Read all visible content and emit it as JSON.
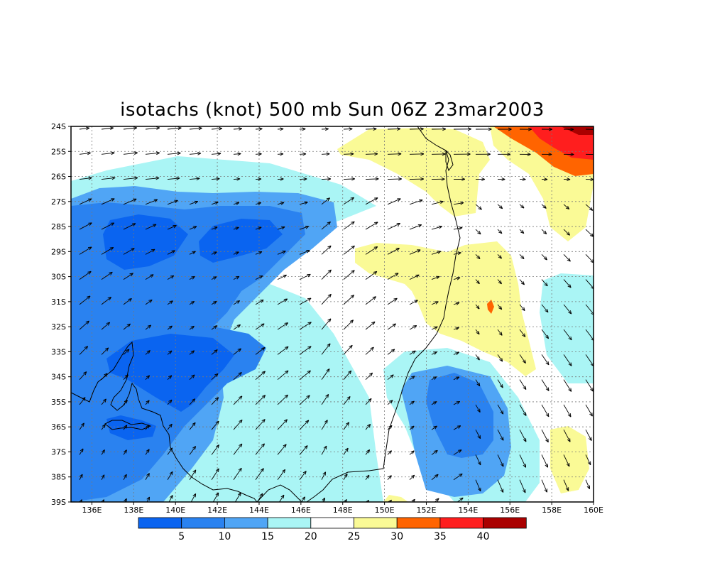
{
  "title": "isotachs (knot) 500 mb Sun 06Z 23mar2003",
  "lat_labels": [
    "24S",
    "25S",
    "26S",
    "27S",
    "28S",
    "29S",
    "30S",
    "31S",
    "32S",
    "33S",
    "34S",
    "35S",
    "36S",
    "37S",
    "38S",
    "39S"
  ],
  "lon_labels": [
    "136E",
    "138E",
    "140E",
    "142E",
    "144E",
    "146E",
    "148E",
    "150E",
    "152E",
    "154E",
    "156E",
    "158E",
    "160E"
  ],
  "colorbar": {
    "levels": [
      "5",
      "10",
      "15",
      "20",
      "25",
      "30",
      "35",
      "40"
    ],
    "colors": [
      "#0a64f0",
      "#2a82f0",
      "#50a5f5",
      "#aaf5f5",
      "#ffffff",
      "#fafa96",
      "#ff6400",
      "#ff1e1e",
      "#aa0000"
    ]
  },
  "map": {
    "lon_range": [
      135,
      160
    ],
    "lat_range": [
      -39,
      -24
    ],
    "grid": "dotted",
    "contour_levels_knots": [
      5,
      10,
      15,
      20,
      25,
      30,
      35,
      40
    ],
    "features": [
      "wind vectors",
      "coastline"
    ]
  }
}
